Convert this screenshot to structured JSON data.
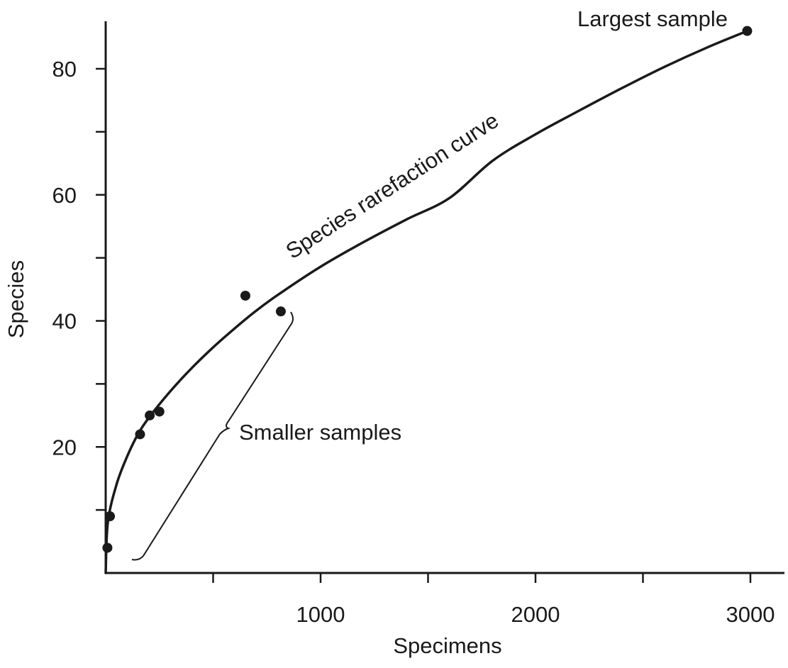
{
  "chart_data": {
    "type": "scatter",
    "title": "",
    "xlabel": "Specimens",
    "ylabel": "Species",
    "xlim": [
      0,
      3130
    ],
    "ylim": [
      0,
      87
    ],
    "grid": false,
    "x_major_ticks": [
      1000,
      2000,
      3000
    ],
    "x_minor_ticks": [
      500,
      1500,
      2500
    ],
    "y_major_ticks": [
      20,
      40,
      60,
      80
    ],
    "y_minor_ticks": [
      10,
      30,
      50,
      70
    ],
    "x_tick_labels": [
      "1000",
      "2000",
      "3000"
    ],
    "y_tick_labels": [
      "20",
      "40",
      "60",
      "80"
    ],
    "series": [
      {
        "name": "Samples",
        "points": [
          {
            "x": 8,
            "y": 4
          },
          {
            "x": 20,
            "y": 9
          },
          {
            "x": 160,
            "y": 22
          },
          {
            "x": 205,
            "y": 25
          },
          {
            "x": 250,
            "y": 25.6
          },
          {
            "x": 650,
            "y": 44
          },
          {
            "x": 815,
            "y": 41.5
          },
          {
            "x": 2985,
            "y": 86
          }
        ]
      },
      {
        "name": "Species rarefaction curve",
        "curve": [
          {
            "x": 0,
            "y": 0
          },
          {
            "x": 10,
            "y": 8
          },
          {
            "x": 50,
            "y": 14
          },
          {
            "x": 100,
            "y": 18.5
          },
          {
            "x": 150,
            "y": 22
          },
          {
            "x": 200,
            "y": 24.6
          },
          {
            "x": 300,
            "y": 28.8
          },
          {
            "x": 400,
            "y": 32.5
          },
          {
            "x": 500,
            "y": 35.8
          },
          {
            "x": 600,
            "y": 38.8
          },
          {
            "x": 700,
            "y": 41.6
          },
          {
            "x": 800,
            "y": 44.1
          },
          {
            "x": 1000,
            "y": 48.6
          },
          {
            "x": 1200,
            "y": 52.5
          },
          {
            "x": 1400,
            "y": 56.1
          },
          {
            "x": 1600,
            "y": 59.5
          },
          {
            "x": 1800,
            "y": 65.4
          },
          {
            "x": 2000,
            "y": 69.6
          },
          {
            "x": 2200,
            "y": 73.3
          },
          {
            "x": 2400,
            "y": 76.9
          },
          {
            "x": 2600,
            "y": 80.3
          },
          {
            "x": 2800,
            "y": 83.4
          },
          {
            "x": 2985,
            "y": 86
          }
        ]
      }
    ],
    "annotations": {
      "curve_label": "Species rarefaction curve",
      "largest_sample": "Largest sample",
      "smaller_samples": "Smaller samples"
    }
  }
}
